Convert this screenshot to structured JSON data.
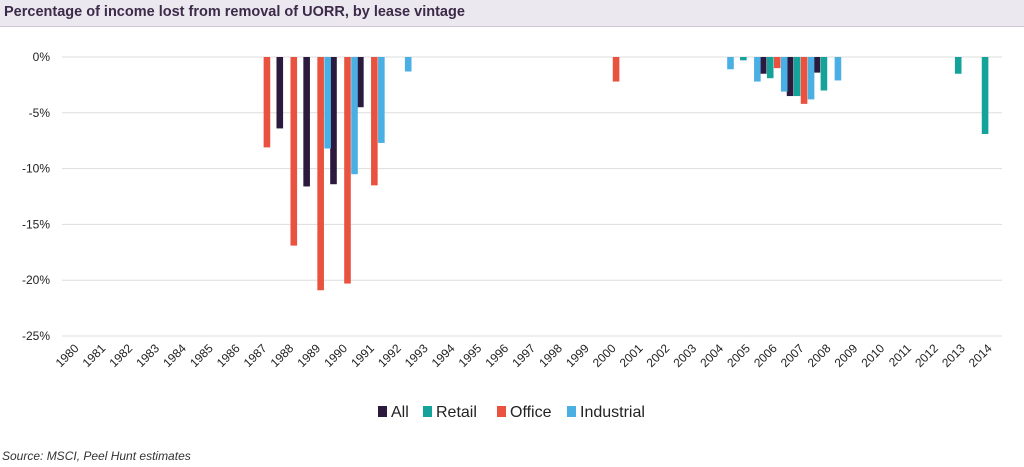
{
  "title": "Percentage of income lost from removal of UORR, by lease vintage",
  "source": "Source: MSCI, Peel Hunt estimates",
  "chart_data": {
    "type": "bar",
    "title": "Percentage of income lost from removal of UORR, by lease vintage",
    "xlabel": "",
    "ylabel": "",
    "ylim": [
      -25,
      0
    ],
    "yticks": [
      0,
      -5,
      -10,
      -15,
      -20,
      -25
    ],
    "ytick_labels": [
      "0%",
      "-5%",
      "-10%",
      "-15%",
      "-20%",
      "-25%"
    ],
    "grid": true,
    "legend": "bottom",
    "categories": [
      "1980",
      "1981",
      "1982",
      "1983",
      "1984",
      "1985",
      "1986",
      "1987",
      "1988",
      "1989",
      "1990",
      "1991",
      "1992",
      "1993",
      "1994",
      "1995",
      "1996",
      "1997",
      "1998",
      "1999",
      "2000",
      "2001",
      "2002",
      "2003",
      "2004",
      "2005",
      "2006",
      "2007",
      "2008",
      "2009",
      "2010",
      "2011",
      "2012",
      "2013",
      "2014"
    ],
    "series": [
      {
        "name": "All",
        "color": "#2b1a3d",
        "values": [
          0,
          0,
          0,
          0,
          0,
          0,
          0,
          0,
          -6.4,
          -11.6,
          -11.4,
          -4.5,
          0,
          0,
          0,
          0,
          0,
          0,
          0,
          0,
          0,
          0,
          0,
          0,
          0,
          0,
          -1.5,
          -3.5,
          -1.4,
          0,
          0,
          0,
          0,
          0,
          0
        ]
      },
      {
        "name": "Retail",
        "color": "#14a39a",
        "values": [
          0,
          0,
          0,
          0,
          0,
          0,
          0,
          0,
          0,
          0,
          0,
          0,
          0,
          0,
          0,
          0,
          0,
          0,
          0,
          0,
          0,
          0,
          0,
          0,
          0,
          -0.3,
          -1.9,
          -3.5,
          -3.0,
          0,
          0,
          0,
          0,
          -1.5,
          -6.9
        ]
      },
      {
        "name": "Office",
        "color": "#e8523e",
        "values": [
          0,
          0,
          0,
          0,
          0,
          0,
          0,
          -8.1,
          -16.9,
          -20.9,
          -20.3,
          -11.5,
          0,
          0,
          0,
          0,
          0,
          0,
          0,
          0,
          -2.2,
          0,
          0,
          0,
          0,
          0,
          -1.0,
          -4.2,
          0,
          0,
          0,
          0,
          0,
          0,
          0
        ]
      },
      {
        "name": "Industrial",
        "color": "#4ab0e4",
        "values": [
          0,
          0,
          0,
          0,
          0,
          0,
          0,
          0,
          0,
          -8.2,
          -10.5,
          -7.7,
          -1.3,
          0,
          0,
          0,
          0,
          0,
          0,
          0,
          0,
          0,
          0,
          0,
          -1.1,
          -2.2,
          -3.1,
          -3.8,
          -2.1,
          0,
          0,
          0,
          0,
          0,
          0
        ]
      }
    ]
  }
}
